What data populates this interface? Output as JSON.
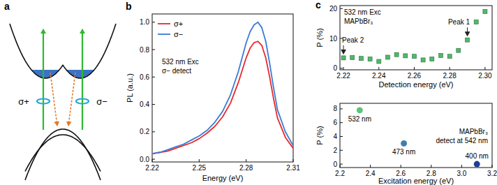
{
  "diagram": {
    "title": "a",
    "labels": [
      "σ+",
      "σ−"
    ]
  },
  "chart_data": [
    {
      "type": "line",
      "title": "b",
      "xlabel": "Energy (eV)",
      "ylabel": "PL (a.u.)",
      "x": [
        2.22,
        2.225,
        2.23,
        2.235,
        2.24,
        2.245,
        2.25,
        2.255,
        2.26,
        2.265,
        2.27,
        2.275,
        2.28,
        2.2825,
        2.285,
        2.2875,
        2.29,
        2.2925,
        2.295,
        2.2975,
        2.3,
        2.305,
        2.31
      ],
      "series": [
        {
          "name": "σ+",
          "color": "#e8282b",
          "values": [
            0.04,
            0.05,
            0.06,
            0.08,
            0.1,
            0.12,
            0.15,
            0.19,
            0.24,
            0.31,
            0.41,
            0.56,
            0.74,
            0.81,
            0.85,
            0.86,
            0.83,
            0.74,
            0.6,
            0.44,
            0.3,
            0.16,
            0.08
          ]
        },
        {
          "name": "σ−",
          "color": "#3a7bd5",
          "values": [
            0.04,
            0.05,
            0.07,
            0.09,
            0.11,
            0.14,
            0.17,
            0.21,
            0.27,
            0.35,
            0.47,
            0.64,
            0.85,
            0.93,
            0.98,
            1.0,
            0.96,
            0.86,
            0.7,
            0.52,
            0.36,
            0.2,
            0.1
          ]
        }
      ],
      "xlim": [
        2.22,
        2.31
      ],
      "xticks": [
        2.22,
        2.25,
        2.28,
        2.31
      ],
      "ylim": [
        -0.02,
        1.06
      ],
      "yticks": [
        {
          "value": 0,
          "label": "0.0"
        },
        {
          "value": 0.2,
          "label": "0.2"
        },
        {
          "value": 0.4,
          "label": "0.4"
        },
        {
          "value": 0.6,
          "label": "0.6"
        },
        {
          "value": 0.8,
          "label": "0.8"
        },
        {
          "value": 1,
          "label": "1.0"
        }
      ],
      "legend": "upper left",
      "annotations": [
        {
          "text": "532 nm Exc"
        },
        {
          "text": "σ− detect"
        }
      ]
    },
    {
      "type": "scatter",
      "title": "c",
      "xlabel": "Detection energy (eV)",
      "ylabel": "P (%)",
      "x": [
        2.22,
        2.225,
        2.23,
        2.235,
        2.24,
        2.245,
        2.25,
        2.255,
        2.26,
        2.265,
        2.27,
        2.275,
        2.28,
        2.285,
        2.29,
        2.295,
        2.3
      ],
      "values": [
        3.5,
        3.6,
        3.3,
        3.1,
        2.3,
        3.7,
        4.6,
        4.2,
        4.0,
        2.8,
        3.1,
        4.3,
        4.0,
        6.0,
        9.5,
        15.5,
        19.0
      ],
      "color": "#4fb86a",
      "marker": "square",
      "xlim": [
        2.218,
        2.304
      ],
      "xticks": [
        2.22,
        2.24,
        2.26,
        2.28,
        {
          "value": 2.3,
          "label": "2.30"
        }
      ],
      "ylim": [
        -0.5,
        21
      ],
      "yticks": [
        0,
        10,
        20
      ],
      "annotations": [
        {
          "text": "532 nm Exc"
        },
        {
          "text": "MAPbBr₃"
        },
        {
          "text": "Peak 2",
          "x": 2.22,
          "y": 3.5
        },
        {
          "text": "Peak 1",
          "x": 2.29,
          "y": 9.5
        }
      ]
    },
    {
      "type": "scatter",
      "xlabel": "Excitation energy (eV)",
      "ylabel": "P (%)",
      "series": [
        {
          "name": "532 nm",
          "color": "#5cc47c",
          "marker": "circle",
          "x": [
            2.33
          ],
          "values": [
            7.8
          ]
        },
        {
          "name": "473 nm",
          "color": "#3f7fae",
          "marker": "circle",
          "x": [
            2.62
          ],
          "values": [
            3.0
          ]
        },
        {
          "name": "400 nm",
          "color": "#1f3f8f",
          "marker": "circle",
          "x": [
            3.1
          ],
          "values": [
            0.0
          ]
        }
      ],
      "xlim": [
        2.2,
        3.2
      ],
      "xticks": [
        2.2,
        2.4,
        2.6,
        2.8,
        {
          "value": 3.0,
          "label": "3.0"
        },
        3.2
      ],
      "ylim": [
        -0.5,
        8.8
      ],
      "yticks": [
        0,
        2,
        4,
        6,
        8
      ],
      "annotations": [
        {
          "text": "MAPbBr₃"
        },
        {
          "text": "detect at 542 nm"
        }
      ]
    }
  ]
}
